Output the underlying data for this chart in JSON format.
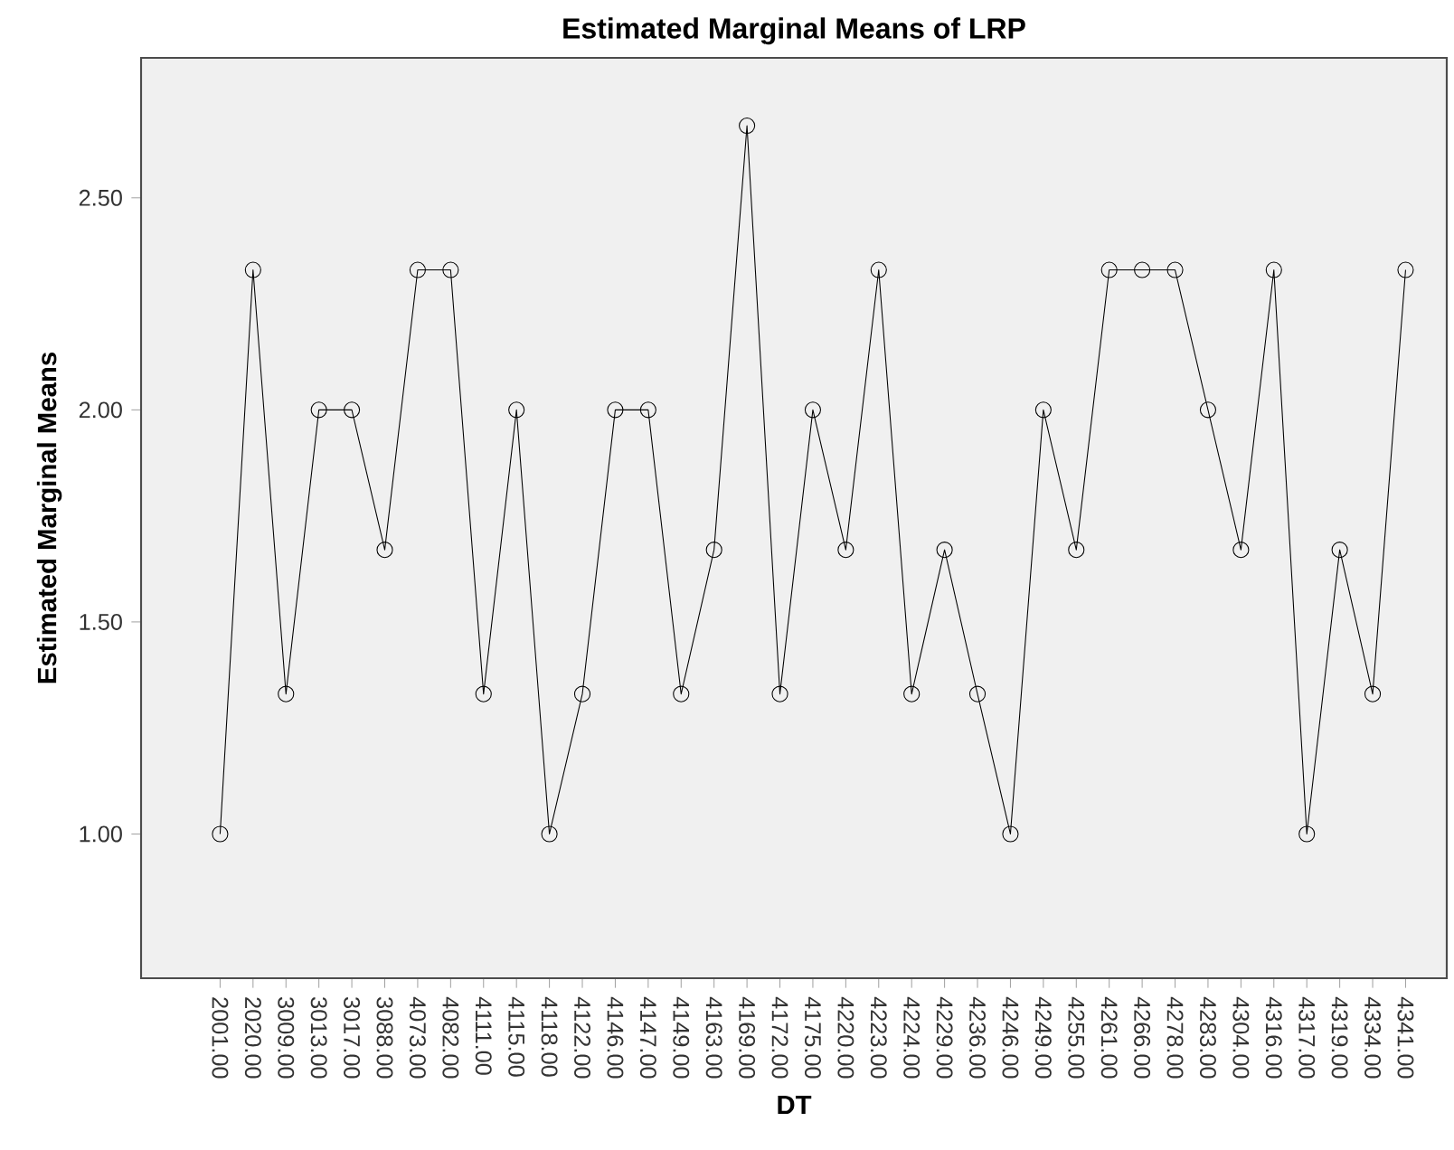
{
  "chart_data": {
    "type": "line",
    "title": "Estimated Marginal Means of LRP",
    "xlabel": "DT",
    "ylabel": "Estimated Marginal Means",
    "categories": [
      "2001.00",
      "2020.00",
      "3009.00",
      "3013.00",
      "3017.00",
      "3088.00",
      "4073.00",
      "4082.00",
      "4111.00",
      "4115.00",
      "4118.00",
      "4122.00",
      "4146.00",
      "4147.00",
      "4149.00",
      "4163.00",
      "4169.00",
      "4172.00",
      "4175.00",
      "4220.00",
      "4223.00",
      "4224.00",
      "4229.00",
      "4236.00",
      "4246.00",
      "4249.00",
      "4255.00",
      "4261.00",
      "4266.00",
      "4278.00",
      "4283.00",
      "4304.00",
      "4316.00",
      "4317.00",
      "4319.00",
      "4334.00",
      "4341.00"
    ],
    "values": [
      1.0,
      2.33,
      1.33,
      2.0,
      2.0,
      1.67,
      2.33,
      2.33,
      1.33,
      2.0,
      1.0,
      1.33,
      2.0,
      2.0,
      1.33,
      1.67,
      2.67,
      1.33,
      2.0,
      1.67,
      2.33,
      1.33,
      1.67,
      1.33,
      1.0,
      2.0,
      1.67,
      2.33,
      2.33,
      2.33,
      2.0,
      1.67,
      2.33,
      1.0,
      1.67,
      1.33,
      2.33
    ],
    "color": "#000000",
    "marker": "circle",
    "line_style": "solid",
    "ylim": [
      0.66,
      2.83
    ],
    "yticks": [
      {
        "value": 1.0,
        "label": "1.00"
      },
      {
        "value": 1.5,
        "label": "1.50"
      },
      {
        "value": 2.0,
        "label": "2.00"
      },
      {
        "value": 2.5,
        "label": "2.50"
      }
    ]
  }
}
